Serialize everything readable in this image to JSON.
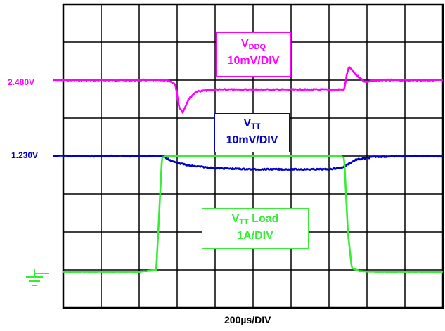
{
  "chart_data": {
    "type": "line",
    "xlabel": "200µs/DIV",
    "divisions": {
      "horizontal": 10,
      "vertical": 8
    },
    "grid": true,
    "xlim": [
      0,
      10
    ],
    "series": [
      {
        "key": "vddq",
        "name_main": "V",
        "name_sub": "DDQ",
        "scale": "10mV/DIV",
        "level_label": "2.480V",
        "color": "#ff00ff",
        "x": [
          0,
          1.0,
          2.0,
          2.7,
          2.95,
          3.05,
          3.15,
          3.3,
          3.5,
          4.0,
          5.0,
          6.0,
          7.0,
          7.4,
          7.47,
          7.53,
          7.7,
          7.95,
          8.3,
          9.0,
          10.0
        ],
        "y": [
          2.48,
          2.48,
          2.48,
          2.48,
          2.479,
          2.473,
          2.4715,
          2.475,
          2.477,
          2.4775,
          2.4775,
          2.4775,
          2.4775,
          2.4775,
          2.4815,
          2.4835,
          2.4815,
          2.4795,
          2.48,
          2.48,
          2.48
        ]
      },
      {
        "key": "vtt",
        "name_main": "V",
        "name_sub": "TT",
        "scale": "10mV/DIV",
        "level_label": "1.230V",
        "color": "#0000cc",
        "x": [
          0,
          1.0,
          2.0,
          2.6,
          2.9,
          3.3,
          4.0,
          5.0,
          6.0,
          7.0,
          7.35,
          7.7,
          8.2,
          9.0,
          10.0
        ],
        "y": [
          1.23,
          1.23,
          1.23,
          1.23,
          1.2285,
          1.2275,
          1.2268,
          1.2265,
          1.2265,
          1.2265,
          1.227,
          1.229,
          1.2298,
          1.23,
          1.23
        ]
      },
      {
        "key": "load",
        "name_main": "V",
        "name_sub": "TT",
        "name_suffix": " Load",
        "scale": "1A/DIV",
        "level_label": "",
        "color": "#33ee33",
        "x": [
          0,
          1.0,
          2.0,
          2.45,
          2.5,
          2.6,
          2.7,
          5.0,
          7.3,
          7.4,
          7.5,
          7.6,
          7.8,
          8.3,
          9.0,
          10.0
        ],
        "y": [
          0,
          0,
          0,
          0.05,
          1.0,
          3.0,
          3.05,
          3.05,
          3.05,
          3.0,
          1.0,
          0.1,
          0.02,
          0,
          0,
          0
        ]
      }
    ]
  }
}
